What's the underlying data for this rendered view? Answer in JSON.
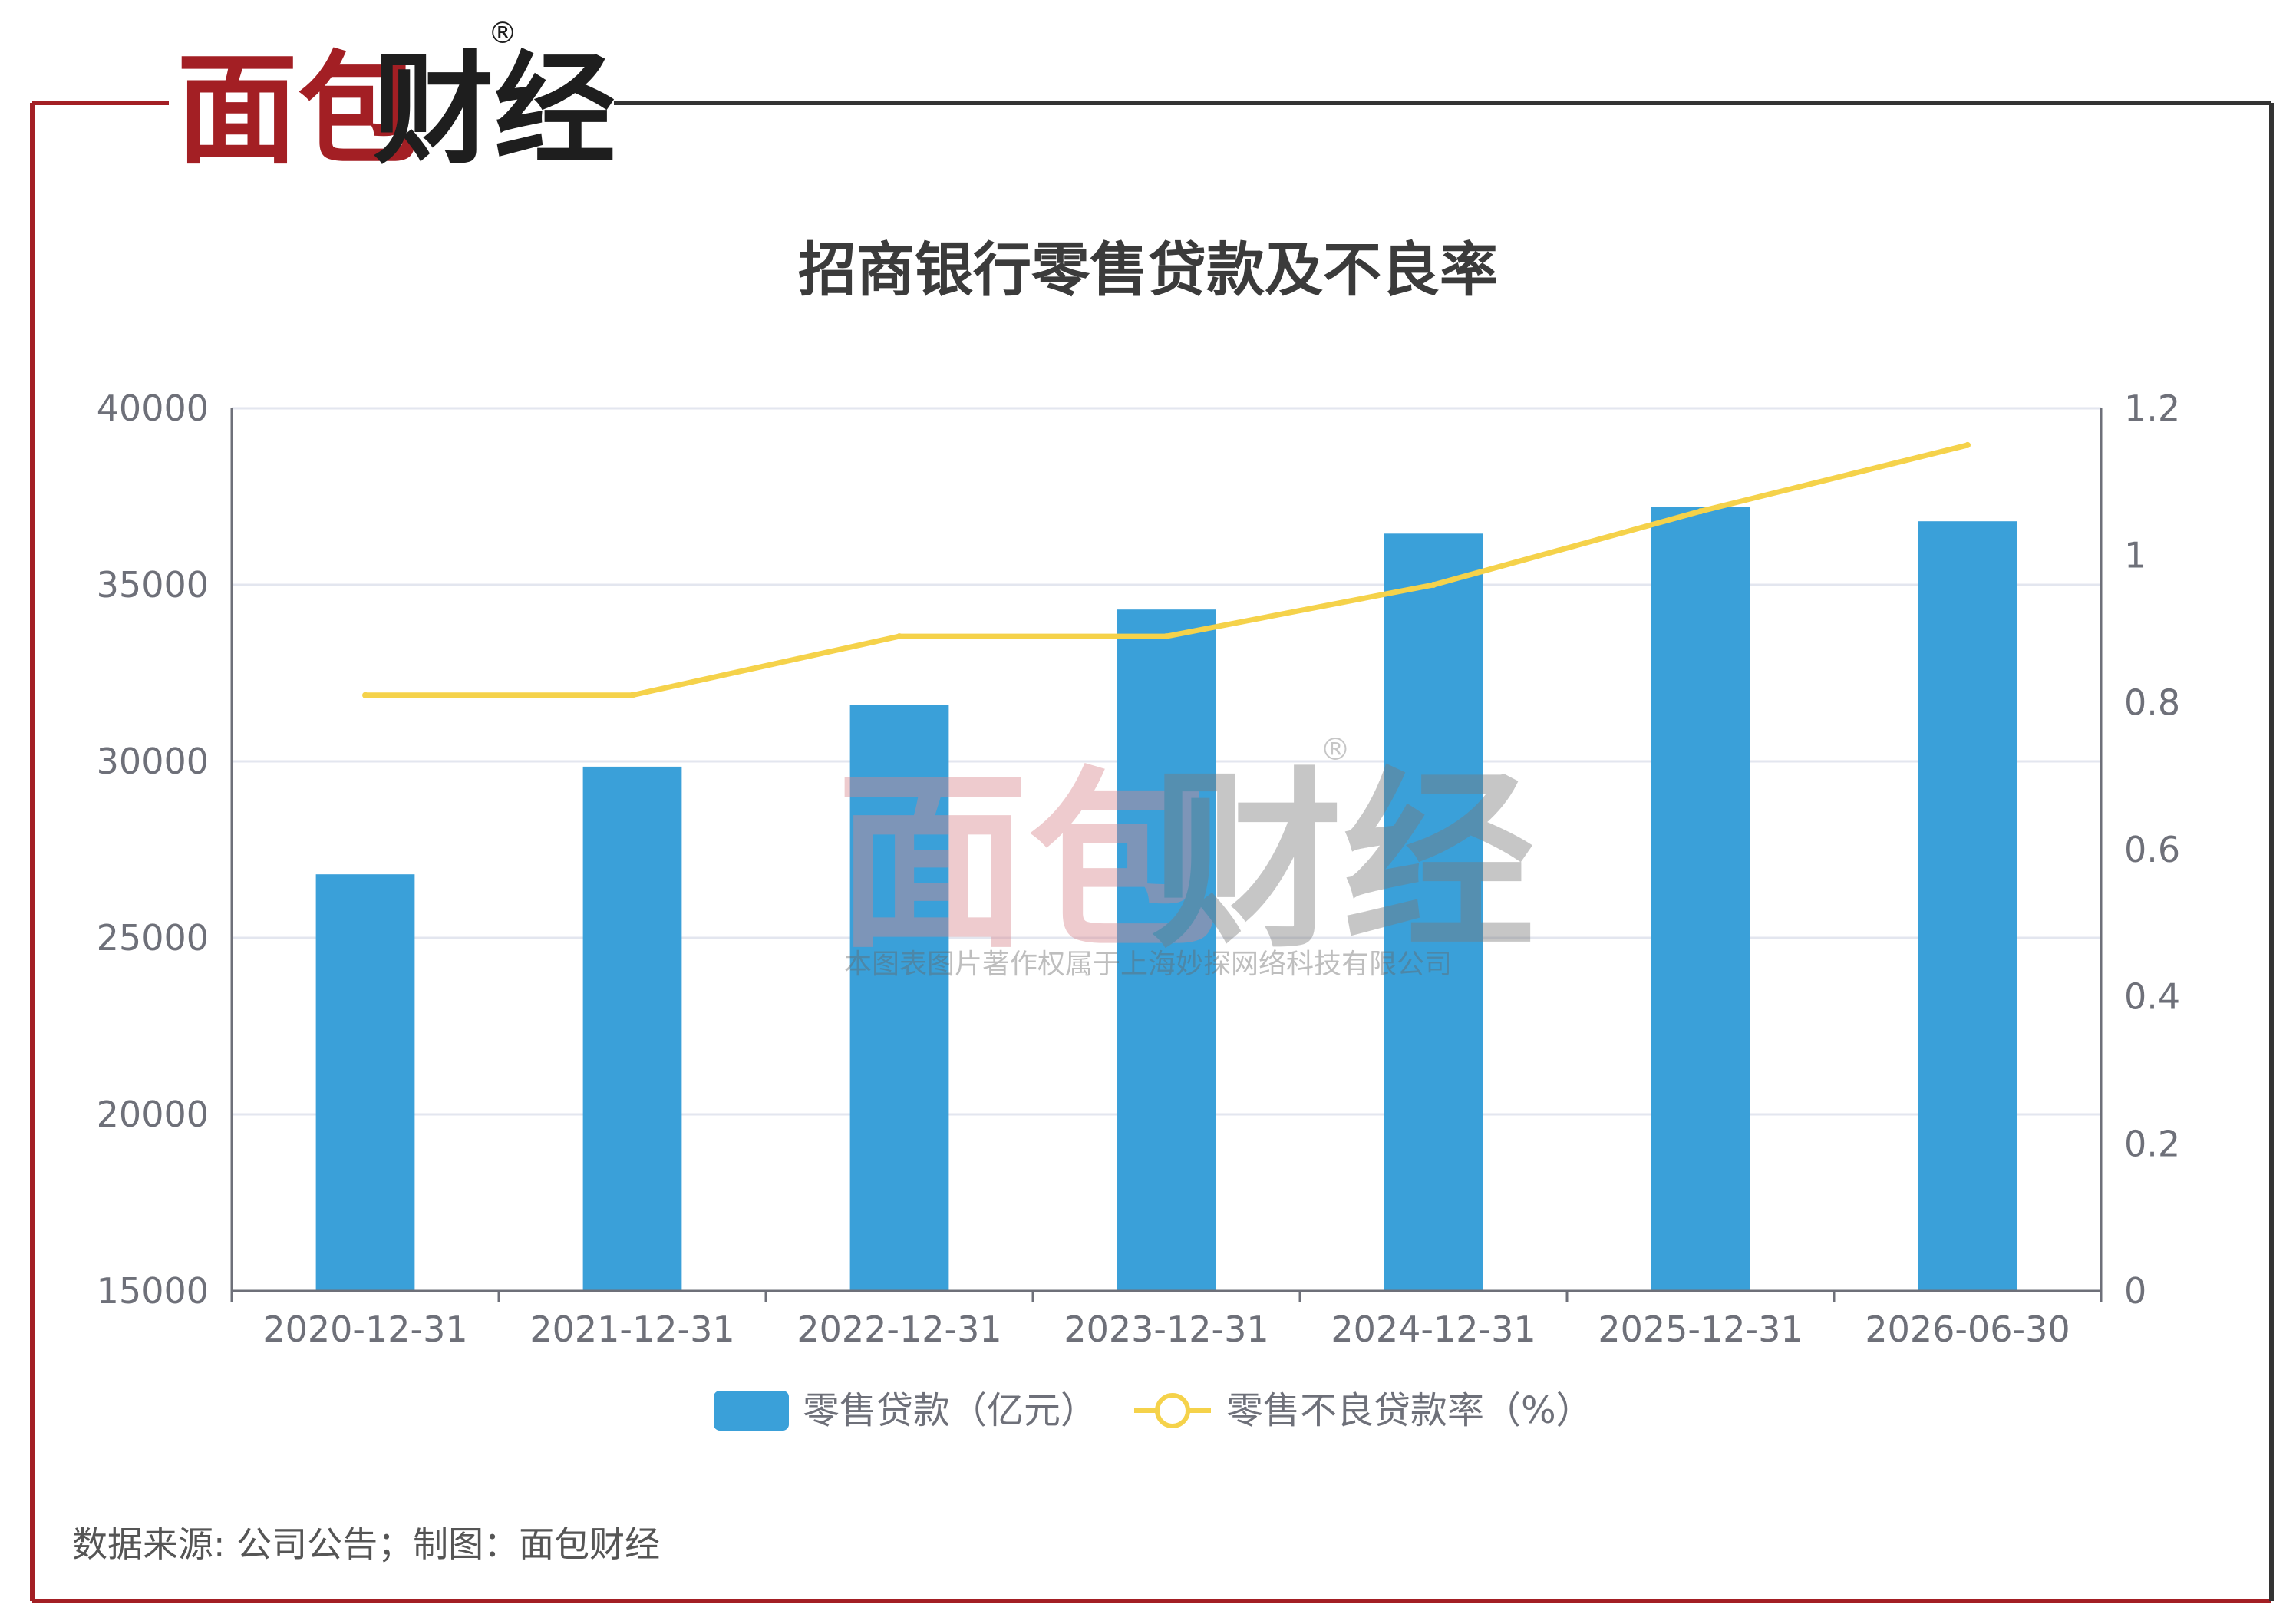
{
  "brand": {
    "name": "面包财经",
    "registered_mark": "®"
  },
  "watermark": {
    "name": "面包财经",
    "registered_mark": "®",
    "copyright": "本图表图片著作权属于上海妙探网络科技有限公司"
  },
  "colors": {
    "frame_red": "#a31f24",
    "frame_dark": "#333333",
    "bar": "#3aa0d9",
    "line": "#f5d24a",
    "grid": "#e3e6ef",
    "axis": "#6e7079",
    "tick_text": "#6e7079",
    "title": "#3b3b3b"
  },
  "footer": {
    "source": "数据来源: 公司公告；制图：面包财经"
  },
  "chart_data": {
    "type": "bar",
    "title": "招商银行零售贷款及不良率",
    "categories": [
      "2020-12-31",
      "2021-12-31",
      "2022-12-31",
      "2023-12-31",
      "2024-12-31",
      "2025-12-31",
      "2026-06-30"
    ],
    "series": [
      {
        "name": "零售贷款（亿元）",
        "type": "bar",
        "axis": "left",
        "values": [
          26800,
          29850,
          31600,
          34300,
          36450,
          37200,
          36800
        ]
      },
      {
        "name": "零售不良贷款率（%）",
        "type": "line",
        "axis": "right",
        "values": [
          0.81,
          0.81,
          0.89,
          0.89,
          0.96,
          1.06,
          1.15
        ]
      }
    ],
    "y_left": {
      "min": 15000,
      "max": 40000,
      "ticks": [
        "15000",
        "20000",
        "25000",
        "30000",
        "35000",
        "40000"
      ]
    },
    "y_right": {
      "min": 0,
      "max": 1.2,
      "ticks": [
        "0",
        "0.2",
        "0.4",
        "0.6",
        "0.8",
        "1",
        "1.2"
      ]
    },
    "grid": true,
    "legend": "bottom-center"
  }
}
